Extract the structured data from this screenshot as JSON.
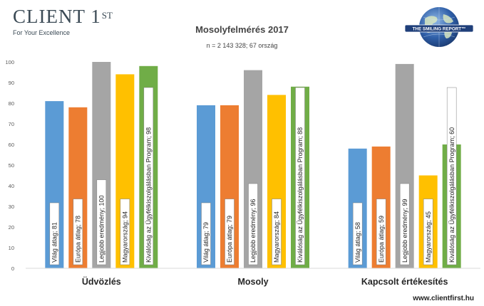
{
  "brand": {
    "name": "CLIENT 1",
    "sup": "ST",
    "tagline": "For Your Excellence"
  },
  "badge": {
    "text": "THE SMILING REPORT™"
  },
  "footer": {
    "url": "www.clientfirst.hu"
  },
  "colors": {
    "series": [
      "#5b9bd5",
      "#ed7d31",
      "#a5a5a5",
      "#ffc000",
      "#70ad47"
    ]
  },
  "chart_data": {
    "type": "bar",
    "title": "Mosolyfelmérés 2017",
    "subtitle": "n = 2 143 328; 67 ország",
    "categories": [
      "Üdvözlés",
      "Mosoly",
      "Kapcsolt értékesítés"
    ],
    "ylim": [
      0,
      100
    ],
    "yticks": [
      0,
      10,
      20,
      30,
      40,
      50,
      60,
      70,
      80,
      90,
      100
    ],
    "grid": false,
    "legend": "none",
    "series": [
      {
        "name": "Világ átlag",
        "values": [
          81,
          79,
          58
        ],
        "labels": [
          "Világ átlag; 81",
          "Világ átlag; 79",
          "Világ átlag; 58"
        ]
      },
      {
        "name": "Európa átlag",
        "values": [
          78,
          79,
          59
        ],
        "labels": [
          "Európa átlag; 78",
          "Európa átlag; 79",
          "Európa átlag; 59"
        ]
      },
      {
        "name": "Legjobb eredmény",
        "values": [
          100,
          96,
          99
        ],
        "labels": [
          "Legjobb eredmény; 100",
          "Legjobb eredmény; 96",
          "Legjobb eredmény; 99"
        ]
      },
      {
        "name": "Magyarország",
        "values": [
          94,
          84,
          45
        ],
        "labels": [
          "Magyarország; 94",
          "Magyarország; 84",
          "Magyarország; 45"
        ]
      },
      {
        "name": "Kiválóság az Ügyfélkiszolgálásban Program",
        "values": [
          98,
          88,
          60
        ],
        "labels": [
          "Kiválóság az Ügyfélkiszolgálásban Program; 98",
          "Kiválóság az Ügyfélkiszolgálásban Program; 88",
          "Kiválóság az Ügyfélkiszolgálásban Program; 60"
        ]
      }
    ]
  }
}
